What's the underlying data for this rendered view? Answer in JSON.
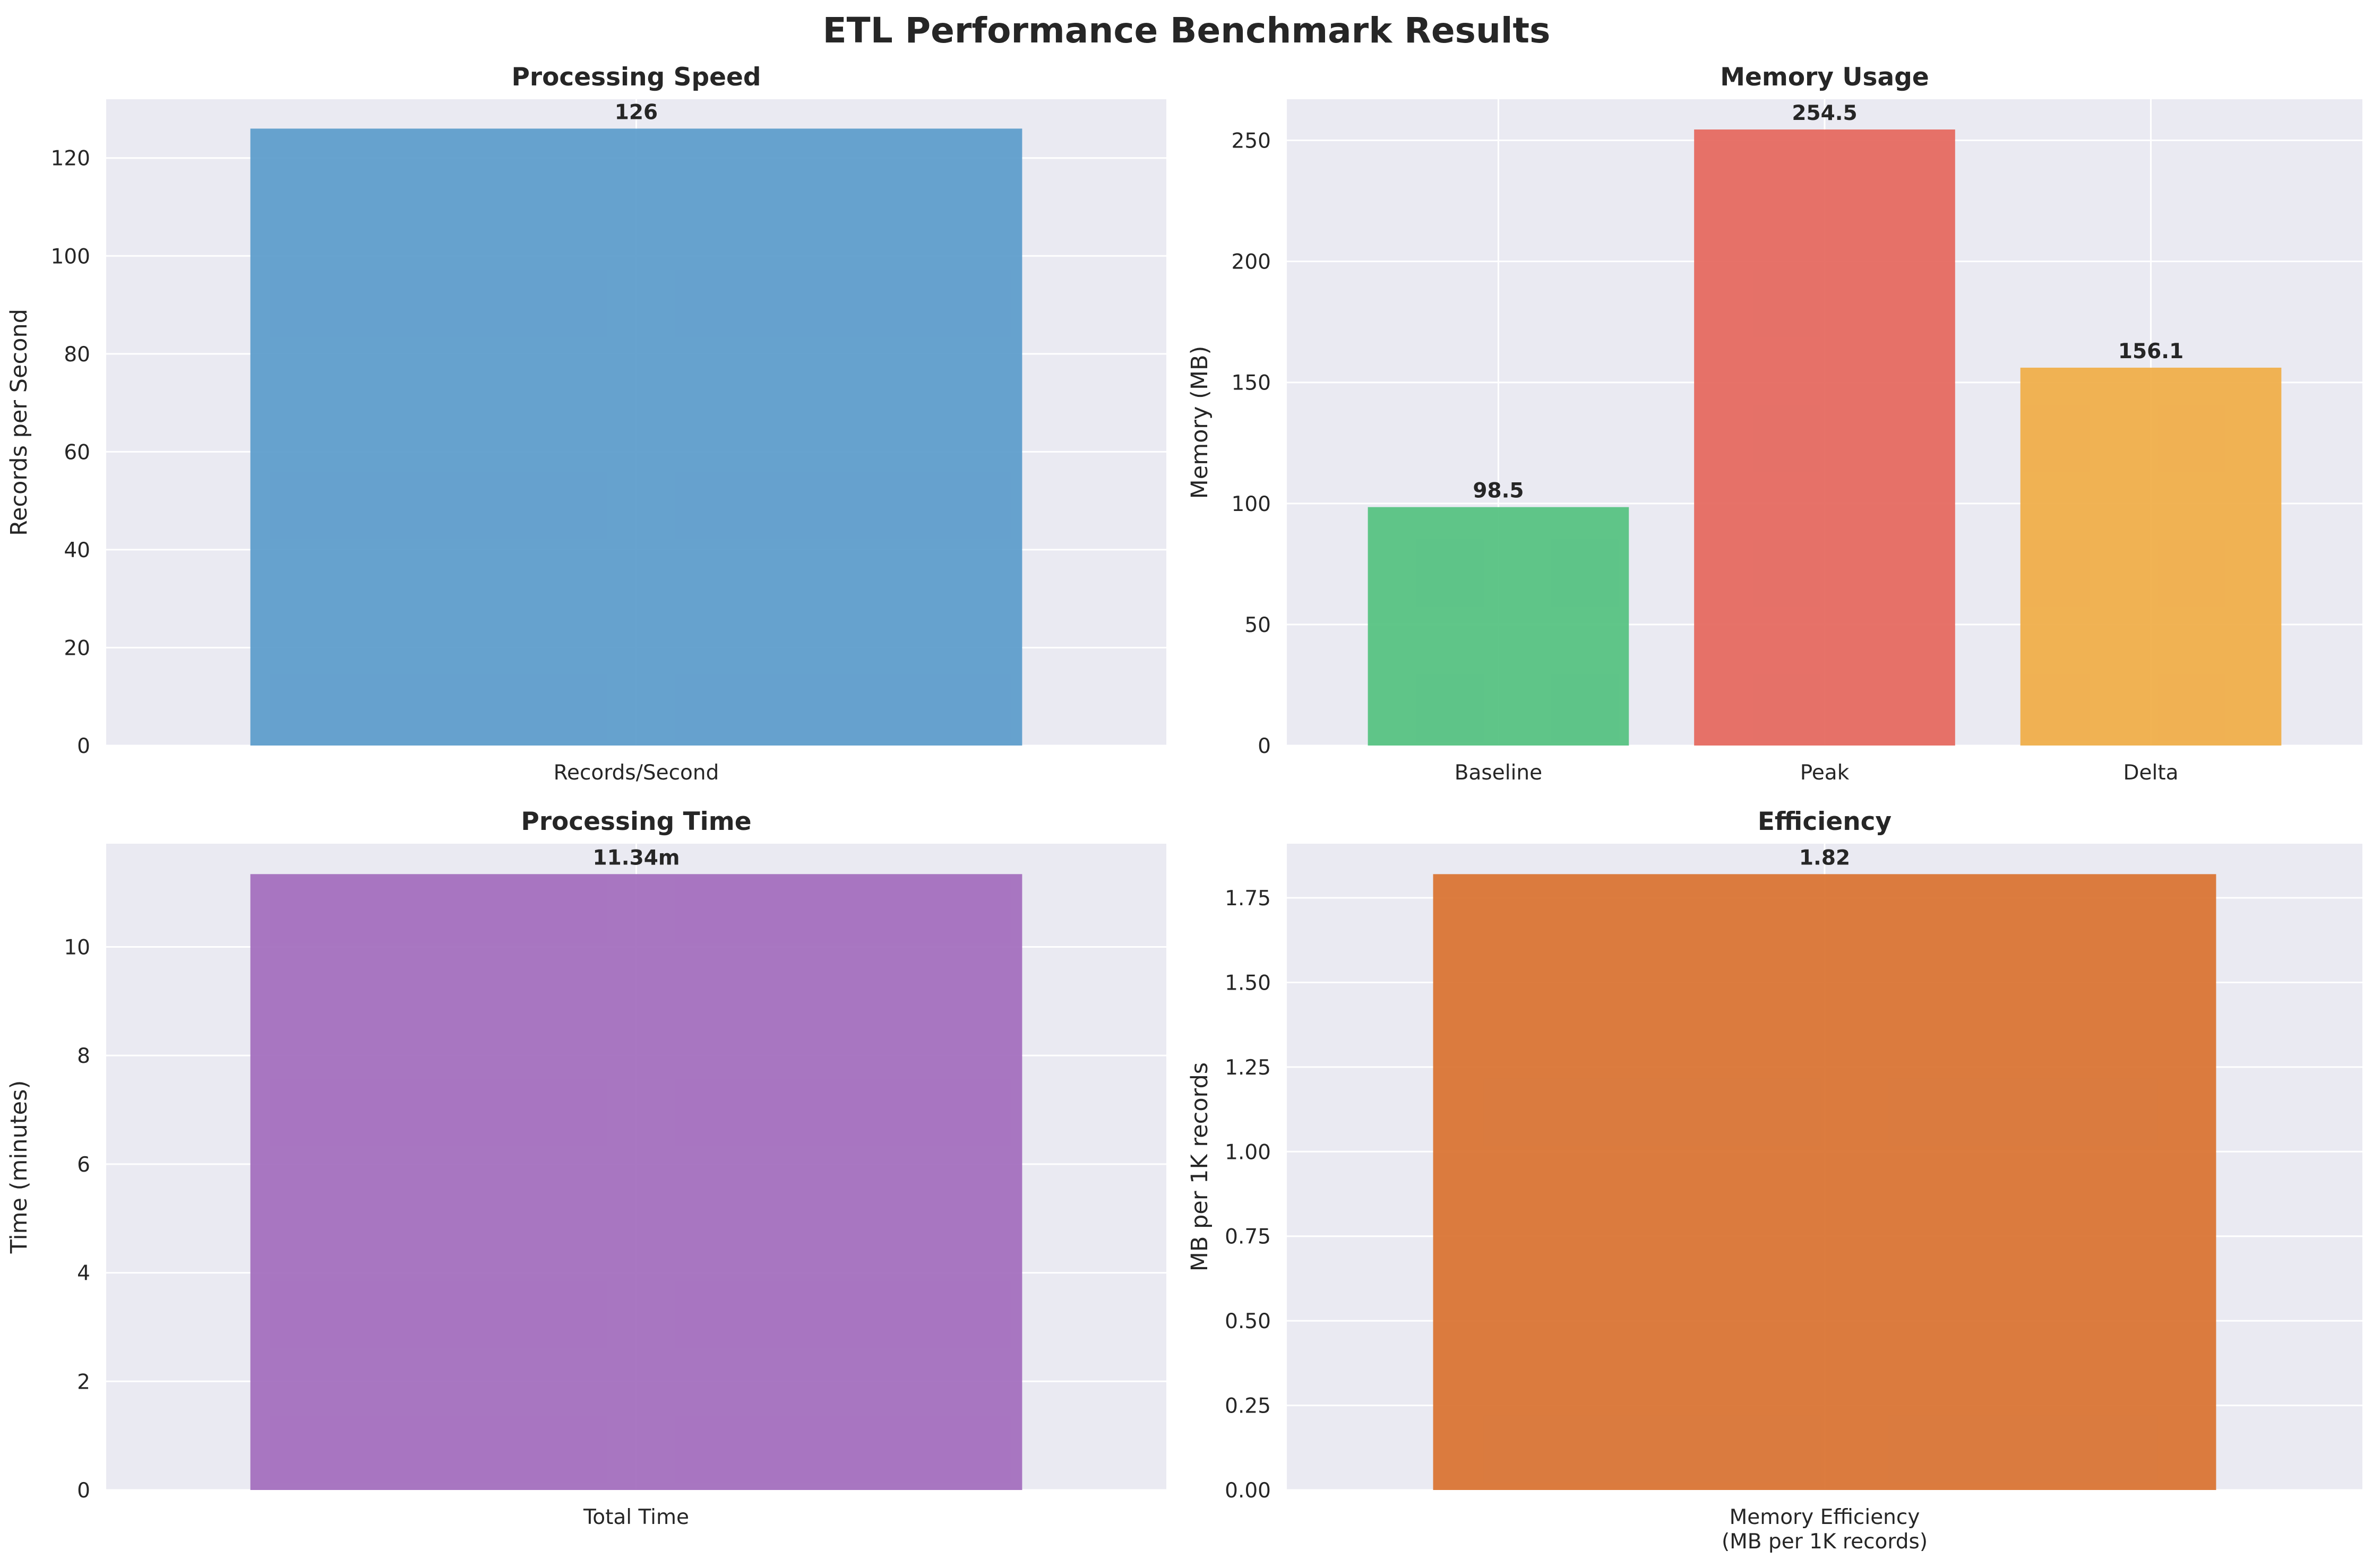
{
  "suptitle": "ETL Performance Benchmark Results",
  "chart_data": [
    {
      "type": "bar",
      "title": "Processing Speed",
      "xlabel": "",
      "ylabel": "Records per Second",
      "categories": [
        "Records/Second"
      ],
      "values": [
        126
      ],
      "value_labels": [
        "126"
      ],
      "colors": [
        "#5a9bcb"
      ],
      "ylim": [
        0,
        132
      ],
      "yticks": [
        0,
        20,
        40,
        60,
        80,
        100,
        120
      ],
      "ytick_labels": [
        "0",
        "20",
        "40",
        "60",
        "80",
        "100",
        "120"
      ],
      "grid": true
    },
    {
      "type": "bar",
      "title": "Memory Usage",
      "xlabel": "",
      "ylabel": "Memory (MB)",
      "categories": [
        "Baseline",
        "Peak",
        "Delta"
      ],
      "values": [
        98.5,
        254.5,
        156.1
      ],
      "value_labels": [
        "98.5",
        "254.5",
        "156.1"
      ],
      "colors": [
        "#52c17f",
        "#e5665c",
        "#f0ac45"
      ],
      "ylim": [
        0,
        267
      ],
      "yticks": [
        0,
        50,
        100,
        150,
        200,
        250
      ],
      "ytick_labels": [
        "0",
        "50",
        "100",
        "150",
        "200",
        "250"
      ],
      "grid": true
    },
    {
      "type": "bar",
      "title": "Processing Time",
      "xlabel": "",
      "ylabel": "Time (minutes)",
      "categories": [
        "Total Time"
      ],
      "values": [
        11.34
      ],
      "value_labels": [
        "11.34m"
      ],
      "colors": [
        "#a26bbd"
      ],
      "ylim": [
        0,
        11.9
      ],
      "yticks": [
        0,
        2,
        4,
        6,
        8,
        10
      ],
      "ytick_labels": [
        "0",
        "2",
        "4",
        "6",
        "8",
        "10"
      ],
      "grid": true
    },
    {
      "type": "bar",
      "title": "Efficiency",
      "xlabel": "",
      "ylabel": "MB per 1K records",
      "categories": [
        "Memory Efficiency\n(MB per 1K records)"
      ],
      "values": [
        1.82
      ],
      "value_labels": [
        "1.82"
      ],
      "colors": [
        "#d9712f"
      ],
      "ylim": [
        0,
        1.91
      ],
      "yticks": [
        0,
        0.25,
        0.5,
        0.75,
        1.0,
        1.25,
        1.5,
        1.75
      ],
      "ytick_labels": [
        "0.00",
        "0.25",
        "0.50",
        "0.75",
        "1.00",
        "1.25",
        "1.50",
        "1.75"
      ],
      "grid": true
    }
  ]
}
